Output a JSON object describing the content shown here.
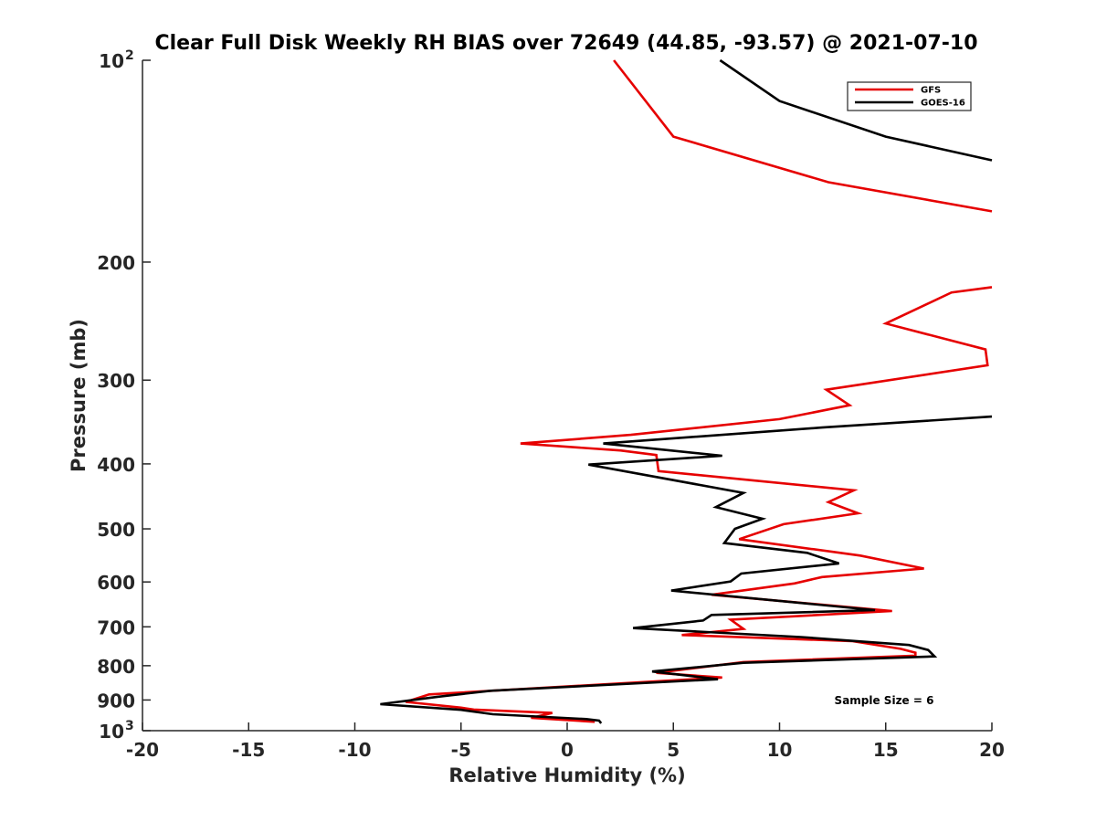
{
  "chart_data": {
    "type": "line",
    "title": "Clear Full Disk Weekly RH BIAS over 72649 (44.85, -93.57) @ 2021-07-10",
    "xlabel": "Relative Humidity (%)",
    "ylabel": "Pressure (mb)",
    "xlim": [
      -20,
      20
    ],
    "ylim": [
      100,
      1000
    ],
    "y_scale": "log",
    "y_reversed": true,
    "x_ticks": [
      "-20",
      "-15",
      "-10",
      "-5",
      "0",
      "5",
      "10",
      "15",
      "20"
    ],
    "y_ticks": [
      {
        "value": 100,
        "label": "10",
        "sup": "2"
      },
      {
        "value": 200,
        "label": "200",
        "sup": ""
      },
      {
        "value": 300,
        "label": "300",
        "sup": ""
      },
      {
        "value": 400,
        "label": "400",
        "sup": ""
      },
      {
        "value": 500,
        "label": "500",
        "sup": ""
      },
      {
        "value": 600,
        "label": "600",
        "sup": ""
      },
      {
        "value": 700,
        "label": "700",
        "sup": ""
      },
      {
        "value": 800,
        "label": "800",
        "sup": ""
      },
      {
        "value": 900,
        "label": "900",
        "sup": ""
      },
      {
        "value": 1000,
        "label": "10",
        "sup": "3"
      }
    ],
    "grid": false,
    "legend": "top-right",
    "annotation": "Sample Size = 6",
    "series": [
      {
        "name": "GFS",
        "color": "#e60000",
        "points": [
          [
            2.2,
            100
          ],
          [
            5.0,
            130
          ],
          [
            12.3,
            152
          ],
          [
            20.0,
            168
          ],
          [
            null,
            190
          ],
          [
            20.0,
            218
          ],
          [
            18.1,
            222
          ],
          [
            15.0,
            247
          ],
          [
            19.7,
            270
          ],
          [
            19.8,
            285
          ],
          [
            12.2,
            310
          ],
          [
            13.3,
            327
          ],
          [
            10.0,
            343
          ],
          [
            3.0,
            362
          ],
          [
            -2.2,
            373
          ],
          [
            2.5,
            382
          ],
          [
            4.2,
            388
          ],
          [
            4.3,
            410
          ],
          [
            13.5,
            438
          ],
          [
            12.3,
            456
          ],
          [
            13.7,
            474
          ],
          [
            10.2,
            492
          ],
          [
            8.1,
            518
          ],
          [
            13.8,
            548
          ],
          [
            16.8,
            573
          ],
          [
            12.0,
            590
          ],
          [
            10.7,
            603
          ],
          [
            6.8,
            627
          ],
          [
            15.3,
            663
          ],
          [
            7.7,
            683
          ],
          [
            8.3,
            705
          ],
          [
            5.4,
            720
          ],
          [
            13.4,
            735
          ],
          [
            15.7,
            755
          ],
          [
            16.4,
            765
          ],
          [
            16.4,
            773
          ],
          [
            8.3,
            790
          ],
          [
            4.2,
            820
          ],
          [
            7.3,
            833
          ],
          [
            -6.5,
            883
          ],
          [
            -7.6,
            906
          ],
          [
            -5.0,
            924
          ],
          [
            -4.4,
            930
          ],
          [
            -0.7,
            941
          ],
          [
            -1.7,
            957
          ],
          [
            1.3,
            970
          ]
        ]
      },
      {
        "name": "GOES-16",
        "color": "#000000",
        "points": [
          [
            7.2,
            100
          ],
          [
            10.0,
            115
          ],
          [
            15.0,
            130
          ],
          [
            20.0,
            141
          ],
          [
            null,
            190
          ],
          [
            20.0,
            340
          ],
          [
            12.0,
            353
          ],
          [
            1.7,
            373
          ],
          [
            7.3,
            389
          ],
          [
            1.0,
            401
          ],
          [
            8.3,
            442
          ],
          [
            7.0,
            464
          ],
          [
            9.2,
            483
          ],
          [
            7.9,
            500
          ],
          [
            7.4,
            525
          ],
          [
            11.3,
            543
          ],
          [
            12.8,
            563
          ],
          [
            8.2,
            583
          ],
          [
            7.7,
            599
          ],
          [
            4.9,
            618
          ],
          [
            14.5,
            661
          ],
          [
            6.8,
            672
          ],
          [
            6.4,
            685
          ],
          [
            3.1,
            703
          ],
          [
            11.0,
            725
          ],
          [
            16.1,
            745
          ],
          [
            17.0,
            758
          ],
          [
            17.3,
            775
          ],
          [
            8.3,
            792
          ],
          [
            4.0,
            816
          ],
          [
            7.1,
            838
          ],
          [
            -3.6,
            872
          ],
          [
            -6.1,
            890
          ],
          [
            -8.8,
            913
          ],
          [
            -5.0,
            931
          ],
          [
            -3.5,
            945
          ],
          [
            0.9,
            961
          ],
          [
            1.5,
            966
          ],
          [
            1.6,
            975
          ]
        ]
      }
    ]
  }
}
